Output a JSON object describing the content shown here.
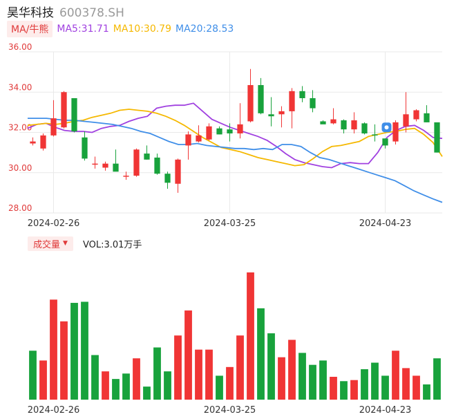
{
  "header": {
    "name": "昊华科技",
    "code": "600378.SH"
  },
  "ma_bar": {
    "switch_label": "MA/牛熊",
    "ma5": "MA5:31.71",
    "ma10": "MA10:30.79",
    "ma20": "MA20:28.53",
    "colors": {
      "ma5": "#a040e0",
      "ma10": "#f5b800",
      "ma20": "#3f8ee8"
    }
  },
  "volume_bar": {
    "switch_label": "成交量",
    "switch_icon": "caret-down-icon",
    "vol_text": "VOL:3.01万手"
  },
  "colors": {
    "up": "#f03535",
    "down": "#18a23c"
  },
  "chart_data": [
    {
      "type": "candlestick",
      "y_ticks": [
        "36.00",
        "34.00",
        "32.00",
        "30.00",
        "28.00"
      ],
      "ylim": [
        28,
        36
      ],
      "x_ticks": [
        {
          "index": 2,
          "label": "2024-02-26"
        },
        {
          "index": 19,
          "label": "2024-03-25"
        },
        {
          "index": 34,
          "label": "2024-04-23"
        }
      ],
      "ohlc": [
        [
          31.45,
          31.75,
          31.35,
          31.55
        ],
        [
          31.2,
          31.95,
          31.1,
          31.85
        ],
        [
          31.85,
          33.6,
          31.8,
          32.7
        ],
        [
          32.25,
          34.05,
          32.2,
          34.0
        ],
        [
          33.7,
          33.7,
          32.0,
          32.05
        ],
        [
          31.75,
          32.05,
          30.6,
          30.7
        ],
        [
          30.45,
          30.8,
          30.2,
          30.45
        ],
        [
          30.25,
          30.55,
          30.1,
          30.45
        ],
        [
          30.45,
          31.15,
          30.1,
          30.05
        ],
        [
          29.8,
          30.05,
          29.65,
          29.85
        ],
        [
          29.85,
          31.2,
          29.8,
          31.15
        ],
        [
          30.95,
          31.35,
          30.65,
          30.65
        ],
        [
          30.75,
          30.95,
          29.9,
          29.95
        ],
        [
          29.95,
          30.05,
          29.2,
          29.5
        ],
        [
          29.45,
          30.7,
          29.0,
          30.65
        ],
        [
          31.35,
          32.05,
          30.65,
          31.9
        ],
        [
          31.55,
          32.35,
          31.5,
          31.85
        ],
        [
          31.65,
          32.45,
          31.6,
          32.3
        ],
        [
          32.2,
          32.3,
          31.9,
          31.9
        ],
        [
          32.15,
          32.45,
          31.55,
          31.95
        ],
        [
          31.95,
          33.45,
          31.7,
          32.4
        ],
        [
          32.55,
          35.15,
          32.5,
          34.35
        ],
        [
          34.35,
          34.7,
          32.9,
          32.95
        ],
        [
          32.9,
          33.75,
          32.3,
          32.8
        ],
        [
          32.9,
          33.3,
          32.25,
          33.05
        ],
        [
          33.05,
          34.2,
          32.2,
          34.05
        ],
        [
          34.05,
          34.3,
          33.5,
          33.7
        ],
        [
          33.7,
          34.1,
          33.0,
          33.2
        ],
        [
          32.55,
          32.6,
          32.45,
          32.4
        ],
        [
          32.45,
          33.2,
          32.4,
          32.65
        ],
        [
          32.6,
          32.65,
          31.95,
          32.15
        ],
        [
          32.15,
          33.0,
          31.95,
          32.6
        ],
        [
          32.45,
          32.5,
          31.9,
          31.95
        ],
        [
          31.9,
          32.4,
          31.55,
          31.85
        ],
        [
          31.7,
          31.7,
          31.2,
          31.35
        ],
        [
          31.55,
          32.6,
          31.4,
          32.5
        ],
        [
          32.3,
          34.0,
          32.0,
          32.9
        ],
        [
          32.65,
          33.15,
          32.55,
          33.1
        ],
        [
          32.95,
          33.35,
          32.5,
          32.5
        ],
        [
          32.5,
          32.5,
          31.0,
          31.0
        ]
      ],
      "ma_series": {
        "MA5": [
          32.2,
          32.4,
          32.45,
          32.25,
          32.1,
          32.05,
          32.05,
          32.0,
          32.2,
          32.3,
          32.35,
          32.55,
          32.7,
          32.8,
          33.2,
          33.3,
          33.35,
          33.35,
          33.45,
          33.05,
          32.65,
          32.45,
          32.25,
          32.1,
          31.95,
          31.8,
          31.6,
          31.3,
          30.95,
          30.65,
          30.5,
          30.4,
          30.3,
          30.25,
          30.45,
          30.5,
          30.45,
          30.45,
          31.0,
          31.75,
          32.1,
          32.3,
          32.35,
          32.1,
          31.75,
          31.7
        ],
        "MA10": [
          32.35,
          32.4,
          32.45,
          32.4,
          32.45,
          32.55,
          32.6,
          32.75,
          32.85,
          32.95,
          33.1,
          33.15,
          33.1,
          33.05,
          32.95,
          32.8,
          32.6,
          32.35,
          32.05,
          31.75,
          31.5,
          31.25,
          31.15,
          31.05,
          30.9,
          30.75,
          30.65,
          30.55,
          30.45,
          30.35,
          30.4,
          30.7,
          31.05,
          31.3,
          31.35,
          31.45,
          31.55,
          31.8,
          31.9,
          32.0,
          32.05,
          32.15,
          32.2,
          31.9,
          31.5,
          30.8
        ],
        "MA20": [
          32.7,
          32.7,
          32.7,
          32.65,
          32.6,
          32.6,
          32.55,
          32.5,
          32.45,
          32.4,
          32.3,
          32.2,
          32.05,
          31.95,
          31.75,
          31.55,
          31.4,
          31.4,
          31.45,
          31.35,
          31.3,
          31.25,
          31.2,
          31.2,
          31.15,
          31.2,
          31.15,
          31.4,
          31.4,
          31.3,
          31.0,
          30.75,
          30.65,
          30.5,
          30.35,
          30.2,
          30.05,
          29.9,
          29.75,
          29.6,
          29.35,
          29.1,
          28.9,
          28.7,
          28.53
        ]
      }
    },
    {
      "type": "bar",
      "name": "volume",
      "x_ticks": [
        "2024-02-26",
        "2024-03-25",
        "2024-04-23"
      ],
      "values": [
        0.45,
        0.36,
        0.92,
        0.72,
        0.89,
        0.9,
        0.41,
        0.26,
        0.19,
        0.24,
        0.38,
        0.12,
        0.48,
        0.26,
        0.59,
        0.82,
        0.46,
        0.46,
        0.22,
        0.3,
        0.59,
        1.17,
        0.84,
        0.61,
        0.39,
        0.55,
        0.43,
        0.32,
        0.36,
        0.21,
        0.17,
        0.18,
        0.28,
        0.34,
        0.22,
        0.45,
        0.29,
        0.22,
        0.14,
        0.38
      ],
      "dir": [
        "down",
        "up",
        "up",
        "up",
        "down",
        "down",
        "down",
        "up",
        "down",
        "down",
        "up",
        "down",
        "down",
        "down",
        "up",
        "up",
        "up",
        "up",
        "down",
        "up",
        "up",
        "up",
        "down",
        "down",
        "up",
        "up",
        "down",
        "down",
        "down",
        "up",
        "down",
        "up",
        "down",
        "down",
        "down",
        "up",
        "up",
        "up",
        "down",
        "down"
      ]
    }
  ]
}
